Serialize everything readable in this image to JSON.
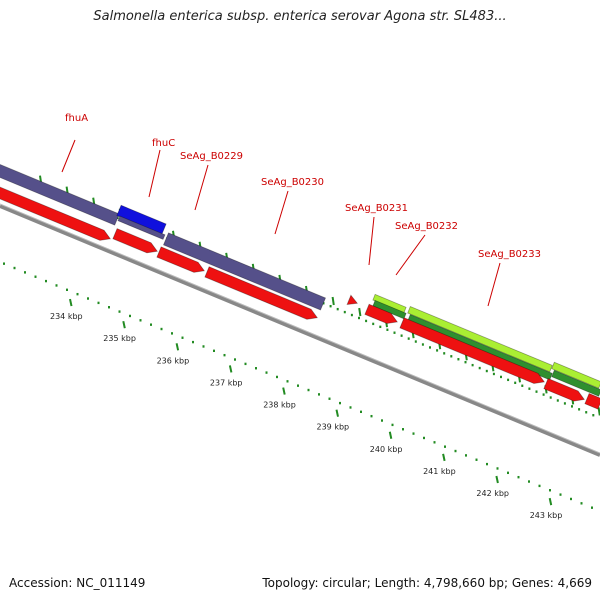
{
  "title": "Salmonella enterica subsp. enterica serovar Agona str. SL483...",
  "genes": [
    {
      "label": "fhuA"
    },
    {
      "label": "fhuC"
    },
    {
      "label": "SeAg_B0229"
    },
    {
      "label": "SeAg_B0230"
    },
    {
      "label": "SeAg_B0231"
    },
    {
      "label": "SeAg_B0232"
    },
    {
      "label": "SeAg_B0233"
    }
  ],
  "ticks": [
    "234 kbp",
    "235 kbp",
    "236 kbp",
    "237 kbp",
    "238 kbp",
    "239 kbp",
    "240 kbp",
    "241 kbp",
    "242 kbp",
    "243 kbp"
  ],
  "colors": {
    "cds_forward": "#ee1111",
    "cog_purple": "#55508a",
    "cog_blue": "#1010dd",
    "cog_lightgreen": "#aaee33",
    "cog_darkgreen": "#2f8f2f",
    "gc_skew_dots": "#228b22",
    "backbone": "#888888",
    "label": "#cc0000"
  },
  "footer": {
    "accession": "Accession: NC_011149",
    "topology": "Topology: circular; Length: 4,798,660 bp; Genes: 4,669"
  }
}
